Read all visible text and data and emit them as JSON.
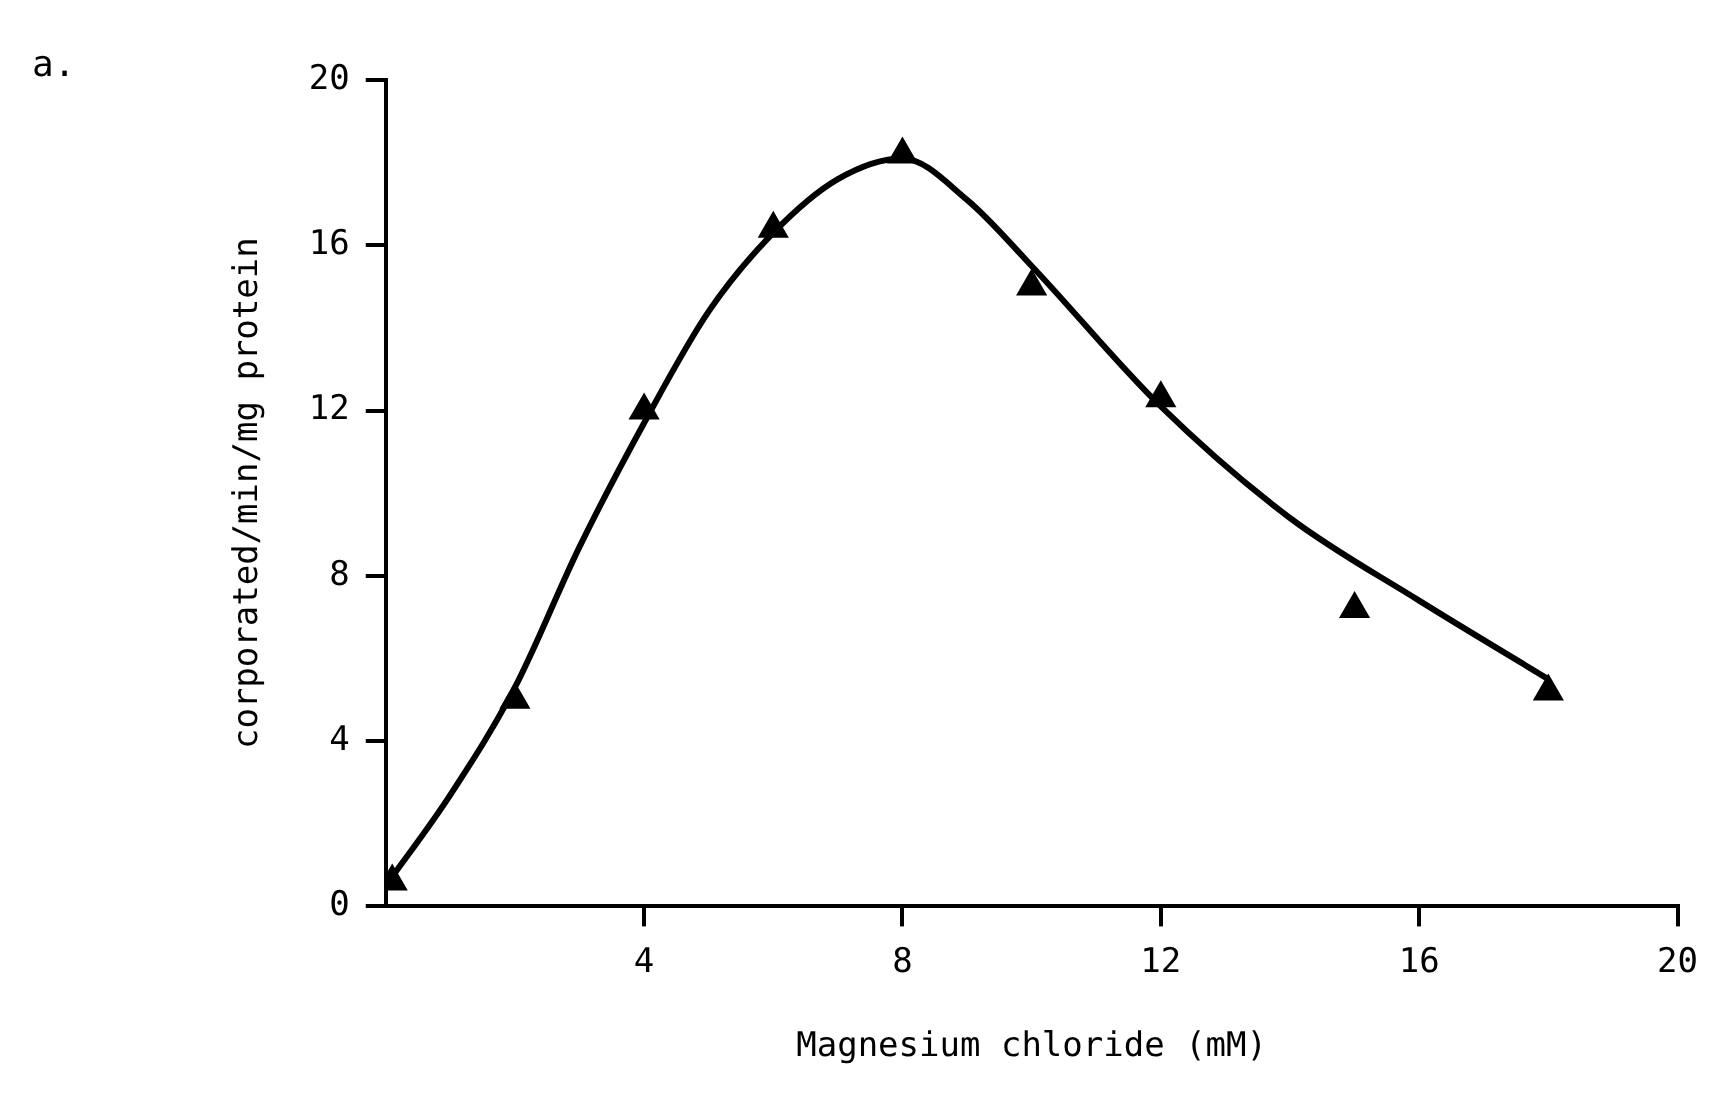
{
  "chart_data": {
    "type": "scatter",
    "xlabel": "Magnesium chloride (mM)",
    "ylabel": "corporated/min/mg protein",
    "annotations": [
      "a."
    ],
    "xlim": [
      0,
      20
    ],
    "xticks": [
      4,
      8,
      12,
      16,
      20
    ],
    "ylim": [
      0,
      20
    ],
    "yticks": [
      0,
      4,
      8,
      12,
      16,
      20
    ],
    "grid": false,
    "legend": false,
    "series": [
      {
        "type": "scatter",
        "color": "#000000",
        "marker": "triangle",
        "x": [
          0.1,
          2,
          4,
          6,
          8,
          10,
          12,
          15,
          18
        ],
        "values": [
          0.6,
          5.0,
          12.0,
          16.4,
          18.2,
          15.0,
          12.3,
          7.2,
          5.2
        ]
      },
      {
        "type": "line",
        "color": "#000000",
        "marker": "none",
        "line_style": "solid",
        "x": [
          0,
          1,
          2,
          3,
          4,
          5,
          6,
          7,
          8,
          9,
          10,
          12,
          14,
          16,
          18
        ],
        "values": [
          0.5,
          2.7,
          5.3,
          8.7,
          11.7,
          14.4,
          16.3,
          17.6,
          18.1,
          17.1,
          15.5,
          12.1,
          9.4,
          7.4,
          5.5
        ]
      }
    ]
  }
}
